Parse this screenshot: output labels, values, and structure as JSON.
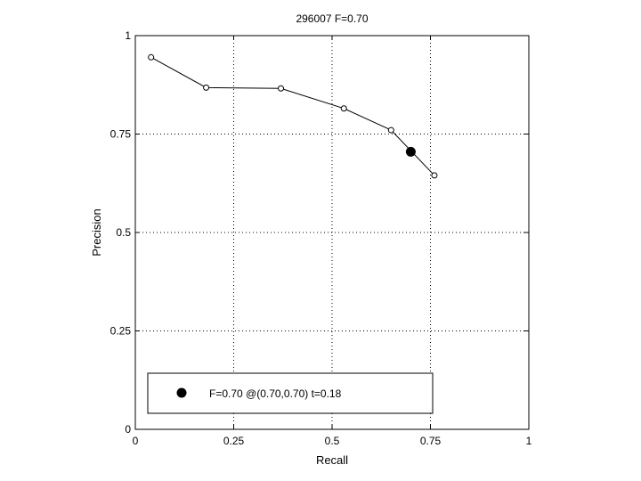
{
  "chart_data": {
    "type": "line",
    "title": "296007 F=0.70",
    "xlabel": "Recall",
    "ylabel": "Precision",
    "xlim": [
      0,
      1
    ],
    "ylim": [
      0,
      1
    ],
    "grid": true,
    "grid_style": "dotted",
    "x_ticks": [
      0,
      0.25,
      0.5,
      0.75,
      1
    ],
    "x_tick_labels": [
      "0",
      "0.25",
      "0.5",
      "0.75",
      "1"
    ],
    "y_ticks": [
      0,
      0.25,
      0.5,
      0.75,
      1
    ],
    "y_tick_labels": [
      "0",
      "0.25",
      "0.5",
      "0.75",
      "1"
    ],
    "series": [
      {
        "marker": "open-circle",
        "color": "#000000",
        "x": [
          0.04,
          0.18,
          0.37,
          0.53,
          0.65,
          0.76
        ],
        "y": [
          0.945,
          0.868,
          0.866,
          0.815,
          0.76,
          0.645
        ]
      }
    ],
    "highlight_point": {
      "x": 0.7,
      "y": 0.705,
      "marker": "filled-circle",
      "color": "#000000"
    },
    "legend": {
      "placement": "bottom-left",
      "entries": [
        "F=0.70 @(0.70,0.70) t=0.18"
      ]
    }
  }
}
